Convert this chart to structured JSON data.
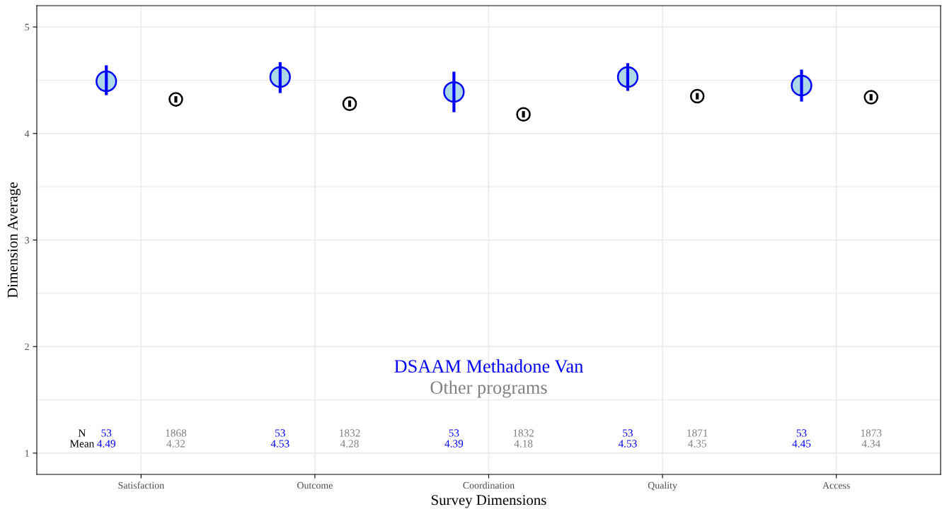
{
  "chart_data": {
    "type": "scatter",
    "xlabel": "Survey Dimensions",
    "ylabel": "Dimension Average",
    "categories": [
      "Satisfaction",
      "Outcome",
      "Coordination",
      "Quality",
      "Access"
    ],
    "series": [
      {
        "name": "DSAAM Methadone Van",
        "color": "#add8e6",
        "values": [
          4.49,
          4.53,
          4.39,
          4.53,
          4.45
        ],
        "errors": [
          [
            4.36,
            4.64
          ],
          [
            4.38,
            4.67
          ],
          [
            4.2,
            4.58
          ],
          [
            4.4,
            4.66
          ],
          [
            4.3,
            4.6
          ]
        ]
      },
      {
        "color": "#ffffff",
        "values": [
          4.32,
          4.28,
          4.18,
          4.35,
          4.34
        ],
        "errors": [
          [
            4.29,
            4.35
          ],
          [
            4.25,
            4.31
          ],
          [
            4.15,
            4.21
          ],
          [
            4.32,
            4.38
          ],
          [
            4.31,
            4.37
          ]
        ]
      }
    ],
    "annotations": [
      "N",
      "Mean",
      "53",
      "4.49",
      "1868",
      "4.32",
      "53",
      "4.53",
      "1832",
      "4.28",
      "53",
      "4.39",
      "1832",
      "4.18",
      "53",
      "4.53",
      "1871",
      "4.35",
      "53",
      "4.45",
      "1873",
      "4.34",
      "Other programs"
    ],
    "ylim": [
      0.8,
      5.2
    ],
    "yticks": [
      1,
      2,
      3,
      4,
      5
    ],
    "grid": true,
    "marker": "circle",
    "legend": "bottom"
  }
}
